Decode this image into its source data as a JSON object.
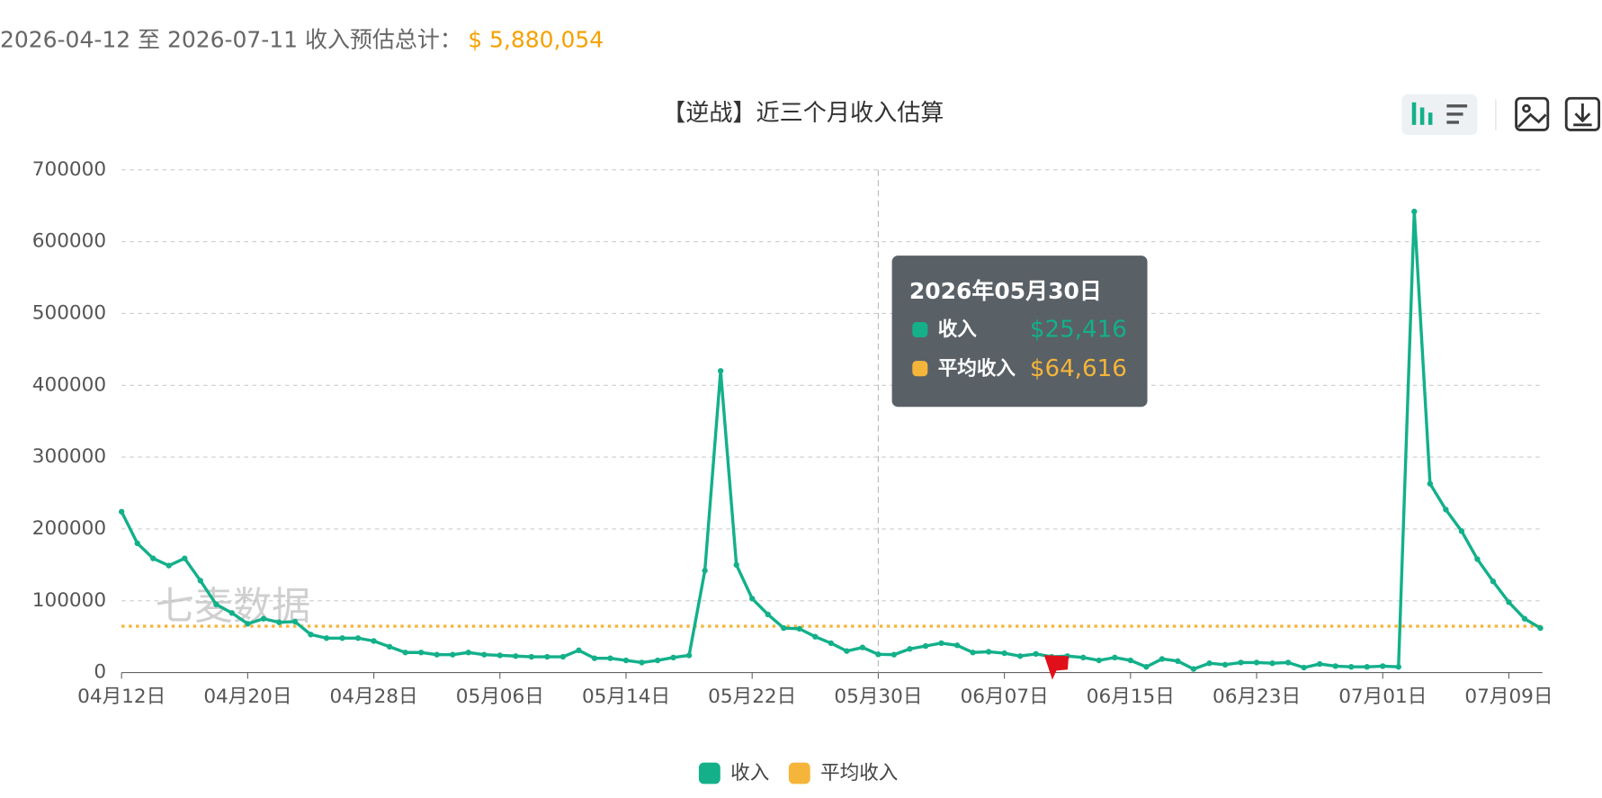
{
  "header": {
    "range_text": "2026-04-12 至 2026-07-11 收入预估总计：",
    "total": "$ 5,880,054"
  },
  "chart_data": {
    "type": "line",
    "title": "【逆战】近三个月收入估算",
    "watermark": "七麦数据",
    "categories": [
      "04月12日",
      null,
      null,
      null,
      null,
      null,
      null,
      null,
      "04月20日",
      null,
      null,
      null,
      null,
      null,
      null,
      null,
      "04月28日",
      null,
      null,
      null,
      null,
      null,
      null,
      null,
      "05月06日",
      null,
      null,
      null,
      null,
      null,
      null,
      null,
      "05月14日",
      null,
      null,
      null,
      null,
      null,
      null,
      null,
      "05月22日",
      null,
      null,
      null,
      null,
      null,
      null,
      null,
      "05月30日",
      null,
      null,
      null,
      null,
      null,
      null,
      null,
      "06月07日",
      null,
      null,
      null,
      null,
      null,
      null,
      null,
      "06月15日",
      null,
      null,
      null,
      null,
      null,
      null,
      null,
      "06月23日",
      null,
      null,
      null,
      null,
      null,
      null,
      null,
      "07月01日",
      null,
      null,
      null,
      null,
      null,
      null,
      null,
      "07月09日",
      null,
      null
    ],
    "series": [
      {
        "name": "收入",
        "color": "#13b08a",
        "values": [
          224000,
          180000,
          159000,
          149000,
          159000,
          128000,
          95000,
          83000,
          68000,
          75000,
          70000,
          71000,
          53000,
          48000,
          48000,
          48000,
          44000,
          36000,
          28000,
          28000,
          25000,
          25000,
          28000,
          25000,
          24000,
          23000,
          22000,
          22000,
          22000,
          31000,
          20000,
          20000,
          17000,
          14000,
          17000,
          21000,
          24000,
          142000,
          420000,
          150000,
          103000,
          81000,
          62000,
          61000,
          50000,
          41000,
          30000,
          35000,
          25416,
          25000,
          33000,
          37000,
          41000,
          38000,
          28000,
          29000,
          27000,
          23000,
          26000,
          22000,
          23000,
          21000,
          17000,
          21000,
          17000,
          8000,
          19000,
          16000,
          5000,
          13000,
          11000,
          14000,
          14000,
          13000,
          14000,
          7000,
          12000,
          9000,
          8000,
          8000,
          9000,
          8000,
          642000,
          263000,
          227000,
          197000,
          158000,
          127000,
          98000,
          75000,
          62000
        ]
      }
    ],
    "average_line": {
      "name": "平均收入",
      "value": 64616,
      "color": "#f5b53a"
    },
    "ylim": [
      0,
      700000
    ],
    "yticks": [
      0,
      100000,
      200000,
      300000,
      400000,
      500000,
      600000,
      700000
    ],
    "grid": true,
    "tooltip": {
      "date": "2026年05月30日",
      "items": [
        {
          "name": "收入",
          "value": "$25,416"
        },
        {
          "name": "平均收入",
          "value": "$64,616"
        }
      ]
    }
  }
}
